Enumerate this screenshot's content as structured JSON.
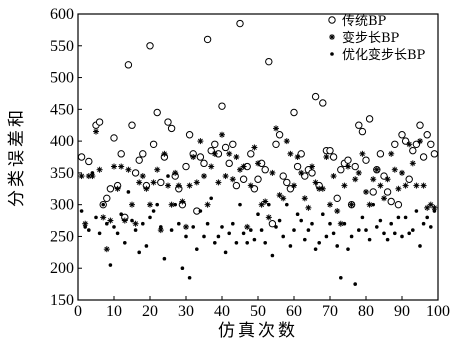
{
  "chart_data": {
    "type": "scatter",
    "title": "",
    "xlabel": "仿真次数",
    "ylabel": "分类误差和",
    "xlim": [
      0,
      100
    ],
    "ylim": [
      150,
      600
    ],
    "x_ticks": [
      0,
      10,
      20,
      30,
      40,
      50,
      60,
      70,
      80,
      90,
      100
    ],
    "y_ticks": [
      150,
      200,
      250,
      300,
      350,
      400,
      450,
      500,
      550,
      600
    ],
    "legend_position": "top-right",
    "series": [
      {
        "name": "传统BP",
        "marker": "open-circle",
        "points": [
          [
            1,
            375
          ],
          [
            3,
            368
          ],
          [
            5,
            425
          ],
          [
            6,
            430
          ],
          [
            7,
            300
          ],
          [
            8,
            310
          ],
          [
            9,
            325
          ],
          [
            10,
            405
          ],
          [
            11,
            330
          ],
          [
            12,
            380
          ],
          [
            13,
            280
          ],
          [
            14,
            520
          ],
          [
            15,
            425
          ],
          [
            16,
            350
          ],
          [
            17,
            370
          ],
          [
            18,
            380
          ],
          [
            19,
            330
          ],
          [
            20,
            550
          ],
          [
            21,
            395
          ],
          [
            22,
            445
          ],
          [
            23,
            335
          ],
          [
            24,
            375
          ],
          [
            25,
            430
          ],
          [
            26,
            420
          ],
          [
            27,
            345
          ],
          [
            28,
            325
          ],
          [
            29,
            300
          ],
          [
            30,
            360
          ],
          [
            31,
            410
          ],
          [
            32,
            380
          ],
          [
            33,
            290
          ],
          [
            34,
            375
          ],
          [
            35,
            365
          ],
          [
            36,
            560
          ],
          [
            37,
            385
          ],
          [
            38,
            395
          ],
          [
            39,
            380
          ],
          [
            40,
            455
          ],
          [
            41,
            390
          ],
          [
            42,
            365
          ],
          [
            43,
            395
          ],
          [
            44,
            330
          ],
          [
            45,
            585
          ],
          [
            46,
            340
          ],
          [
            47,
            360
          ],
          [
            48,
            380
          ],
          [
            49,
            325
          ],
          [
            50,
            340
          ],
          [
            51,
            365
          ],
          [
            52,
            355
          ],
          [
            53,
            525
          ],
          [
            54,
            270
          ],
          [
            55,
            395
          ],
          [
            56,
            410
          ],
          [
            57,
            345
          ],
          [
            58,
            335
          ],
          [
            59,
            325
          ],
          [
            60,
            445
          ],
          [
            61,
            360
          ],
          [
            62,
            380
          ],
          [
            63,
            345
          ],
          [
            64,
            355
          ],
          [
            65,
            350
          ],
          [
            66,
            470
          ],
          [
            67,
            330
          ],
          [
            68,
            460
          ],
          [
            69,
            385
          ],
          [
            70,
            385
          ],
          [
            71,
            375
          ],
          [
            72,
            310
          ],
          [
            73,
            355
          ],
          [
            74,
            365
          ],
          [
            75,
            370
          ],
          [
            76,
            300
          ],
          [
            77,
            360
          ],
          [
            78,
            425
          ],
          [
            79,
            415
          ],
          [
            80,
            370
          ],
          [
            81,
            435
          ],
          [
            82,
            320
          ],
          [
            83,
            355
          ],
          [
            84,
            380
          ],
          [
            85,
            345
          ],
          [
            86,
            320
          ],
          [
            87,
            305
          ],
          [
            88,
            395
          ],
          [
            89,
            300
          ],
          [
            90,
            410
          ],
          [
            91,
            400
          ],
          [
            92,
            340
          ],
          [
            93,
            385
          ],
          [
            94,
            395
          ],
          [
            95,
            425
          ],
          [
            96,
            375
          ],
          [
            97,
            410
          ],
          [
            98,
            395
          ],
          [
            99,
            380
          ]
        ]
      },
      {
        "name": "变步长BP",
        "marker": "asterisk",
        "points": [
          [
            1,
            345
          ],
          [
            2,
            270
          ],
          [
            3,
            345
          ],
          [
            4,
            345
          ],
          [
            5,
            415
          ],
          [
            6,
            355
          ],
          [
            7,
            280
          ],
          [
            8,
            230
          ],
          [
            9,
            275
          ],
          [
            10,
            360
          ],
          [
            11,
            325
          ],
          [
            12,
            360
          ],
          [
            13,
            275
          ],
          [
            14,
            355
          ],
          [
            15,
            300
          ],
          [
            16,
            270
          ],
          [
            17,
            335
          ],
          [
            18,
            345
          ],
          [
            19,
            325
          ],
          [
            20,
            300
          ],
          [
            21,
            335
          ],
          [
            22,
            355
          ],
          [
            23,
            260
          ],
          [
            24,
            380
          ],
          [
            25,
            330
          ],
          [
            26,
            300
          ],
          [
            27,
            350
          ],
          [
            28,
            330
          ],
          [
            29,
            305
          ],
          [
            30,
            265
          ],
          [
            31,
            330
          ],
          [
            32,
            375
          ],
          [
            33,
            335
          ],
          [
            34,
            400
          ],
          [
            35,
            345
          ],
          [
            36,
            300
          ],
          [
            37,
            360
          ],
          [
            38,
            380
          ],
          [
            39,
            335
          ],
          [
            40,
            410
          ],
          [
            41,
            345
          ],
          [
            42,
            380
          ],
          [
            43,
            340
          ],
          [
            44,
            375
          ],
          [
            45,
            355
          ],
          [
            46,
            360
          ],
          [
            47,
            265
          ],
          [
            48,
            330
          ],
          [
            49,
            390
          ],
          [
            50,
            365
          ],
          [
            51,
            300
          ],
          [
            52,
            305
          ],
          [
            53,
            280
          ],
          [
            54,
            350
          ],
          [
            55,
            420
          ],
          [
            56,
            315
          ],
          [
            57,
            310
          ],
          [
            58,
            400
          ],
          [
            59,
            380
          ],
          [
            60,
            330
          ],
          [
            61,
            375
          ],
          [
            62,
            350
          ],
          [
            63,
            310
          ],
          [
            64,
            295
          ],
          [
            65,
            360
          ],
          [
            66,
            335
          ],
          [
            67,
            325
          ],
          [
            68,
            325
          ],
          [
            69,
            375
          ],
          [
            70,
            300
          ],
          [
            71,
            345
          ],
          [
            72,
            290
          ],
          [
            73,
            270
          ],
          [
            74,
            330
          ],
          [
            75,
            360
          ],
          [
            76,
            300
          ],
          [
            77,
            340
          ],
          [
            78,
            350
          ],
          [
            79,
            380
          ],
          [
            80,
            320
          ],
          [
            81,
            300
          ],
          [
            82,
            340
          ],
          [
            83,
            355
          ],
          [
            84,
            330
          ],
          [
            85,
            310
          ],
          [
            86,
            340
          ],
          [
            87,
            380
          ],
          [
            88,
            355
          ],
          [
            89,
            325
          ],
          [
            90,
            350
          ],
          [
            91,
            330
          ],
          [
            92,
            395
          ],
          [
            93,
            365
          ],
          [
            94,
            330
          ],
          [
            95,
            400
          ],
          [
            96,
            330
          ],
          [
            97,
            295
          ],
          [
            98,
            300
          ],
          [
            99,
            295
          ]
        ]
      },
      {
        "name": "优化变步长BP",
        "marker": "filled-circle",
        "points": [
          [
            1,
            290
          ],
          [
            2,
            265
          ],
          [
            3,
            260
          ],
          [
            4,
            350
          ],
          [
            5,
            280
          ],
          [
            6,
            255
          ],
          [
            7,
            300
          ],
          [
            8,
            270
          ],
          [
            9,
            205
          ],
          [
            10,
            265
          ],
          [
            11,
            255
          ],
          [
            12,
            285
          ],
          [
            13,
            240
          ],
          [
            14,
            320
          ],
          [
            15,
            275
          ],
          [
            16,
            260
          ],
          [
            17,
            225
          ],
          [
            18,
            270
          ],
          [
            19,
            235
          ],
          [
            20,
            280
          ],
          [
            21,
            290
          ],
          [
            22,
            300
          ],
          [
            23,
            265
          ],
          [
            24,
            215
          ],
          [
            25,
            345
          ],
          [
            26,
            260
          ],
          [
            27,
            300
          ],
          [
            28,
            270
          ],
          [
            29,
            200
          ],
          [
            30,
            250
          ],
          [
            31,
            185
          ],
          [
            32,
            265
          ],
          [
            33,
            230
          ],
          [
            34,
            290
          ],
          [
            35,
            250
          ],
          [
            36,
            270
          ],
          [
            37,
            310
          ],
          [
            38,
            240
          ],
          [
            39,
            250
          ],
          [
            40,
            265
          ],
          [
            41,
            225
          ],
          [
            42,
            255
          ],
          [
            43,
            270
          ],
          [
            44,
            240
          ],
          [
            45,
            300
          ],
          [
            46,
            255
          ],
          [
            47,
            240
          ],
          [
            48,
            260
          ],
          [
            49,
            245
          ],
          [
            50,
            285
          ],
          [
            51,
            260
          ],
          [
            52,
            240
          ],
          [
            53,
            300
          ],
          [
            54,
            220
          ],
          [
            55,
            265
          ],
          [
            56,
            275
          ],
          [
            57,
            250
          ],
          [
            58,
            300
          ],
          [
            59,
            235
          ],
          [
            60,
            260
          ],
          [
            61,
            285
          ],
          [
            62,
            275
          ],
          [
            63,
            245
          ],
          [
            64,
            260
          ],
          [
            65,
            270
          ],
          [
            66,
            230
          ],
          [
            67,
            240
          ],
          [
            68,
            285
          ],
          [
            69,
            250
          ],
          [
            70,
            270
          ],
          [
            71,
            255
          ],
          [
            72,
            235
          ],
          [
            73,
            185
          ],
          [
            74,
            270
          ],
          [
            75,
            230
          ],
          [
            76,
            250
          ],
          [
            77,
            175
          ],
          [
            78,
            260
          ],
          [
            79,
            280
          ],
          [
            80,
            260
          ],
          [
            81,
            245
          ],
          [
            82,
            300
          ],
          [
            83,
            265
          ],
          [
            84,
            275
          ],
          [
            85,
            255
          ],
          [
            86,
            245
          ],
          [
            87,
            270
          ],
          [
            88,
            255
          ],
          [
            89,
            280
          ],
          [
            90,
            250
          ],
          [
            91,
            280
          ],
          [
            92,
            255
          ],
          [
            93,
            260
          ],
          [
            94,
            290
          ],
          [
            95,
            235
          ],
          [
            96,
            270
          ],
          [
            97,
            280
          ],
          [
            98,
            265
          ],
          [
            99,
            290
          ]
        ]
      }
    ]
  }
}
